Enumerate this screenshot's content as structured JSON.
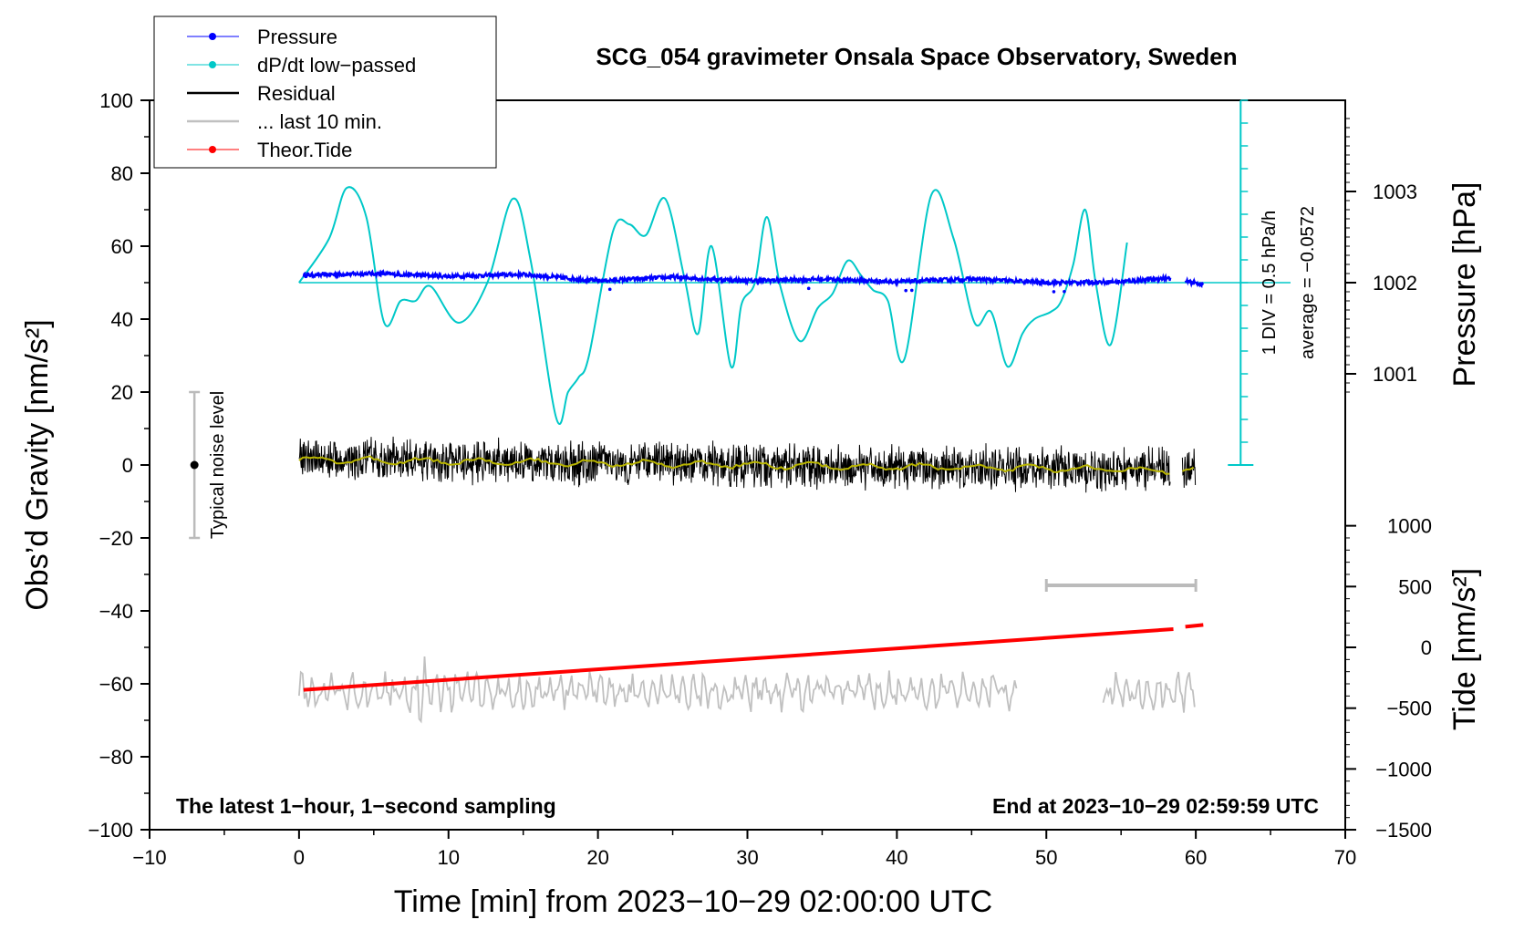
{
  "chart_data": {
    "type": "line",
    "title": "SCG_054 gravimeter Onsala Space Observatory, Sweden",
    "xlabel": "Time [min] from 2023−10−29 02:00:00 UTC",
    "ylabel": "Obs’d Gravity [nm/s²]",
    "y2label_pressure": "Pressure [hPa]",
    "y2label_tide": "Tide [nm/s²]",
    "xlim": [
      -10,
      70
    ],
    "ylim": [
      -100,
      100
    ],
    "x_ticks": [
      -10,
      0,
      10,
      20,
      30,
      40,
      50,
      60,
      70
    ],
    "x_tick_labels": [
      "−10",
      "0",
      "10",
      "20",
      "30",
      "40",
      "50",
      "60",
      "70"
    ],
    "y_ticks": [
      -100,
      -80,
      -60,
      -40,
      -20,
      0,
      20,
      40,
      60,
      80,
      100
    ],
    "y_tick_labels": [
      "−100",
      "−80",
      "−60",
      "−40",
      "−20",
      "0",
      "20",
      "40",
      "60",
      "80",
      "100"
    ],
    "pressure_axis": {
      "ticks": [
        1001,
        1002,
        1003
      ],
      "tick_labels": [
        "1001",
        "1002",
        "1003"
      ],
      "ref_value": 1002,
      "ref_gravity": 50,
      "gravity_per_hpa": 25
    },
    "tide_axis": {
      "ticks": [
        -1500,
        -1000,
        -500,
        0,
        500,
        1000
      ],
      "tick_labels": [
        "−1500",
        "−1000",
        "−500",
        "0",
        "500",
        "1000"
      ],
      "gravity_at_zero": -50,
      "gravity_per_500": 16.67
    },
    "legend": {
      "position": "top-left",
      "entries": [
        {
          "label": "Pressure",
          "color": "#0000ff",
          "marker": "dot"
        },
        {
          "label": "dP/dt low−passed",
          "color": "#00c8c8",
          "marker": "dot"
        },
        {
          "label": "Residual",
          "color": "#000000",
          "marker": "none"
        },
        {
          "label": "... last 10 min.",
          "color": "#c0c0c0",
          "marker": "none"
        },
        {
          "label": "Theor.Tide",
          "color": "#ff0000",
          "marker": "dot"
        }
      ]
    },
    "annotations": {
      "noise_label": "Typical noise level",
      "noise_center": 0,
      "noise_range": [
        -20,
        20
      ],
      "noise_x": -7,
      "scale_label": "1 DIV = 0.5 hPa/h",
      "average_label": "average = −0.0572",
      "bottom_left": "The latest 1−hour, 1−second sampling",
      "bottom_right": "End at 2023−10−29 02:59:59 UTC",
      "last10_bar": {
        "x": [
          50,
          60
        ],
        "y": -33
      }
    },
    "series": [
      {
        "name": "dP/dt low−passed",
        "color": "#00c8c8",
        "baseline": 50,
        "x": [
          0.0,
          2.0,
          3.2,
          4.5,
          5.7,
          6.8,
          7.8,
          8.8,
          10.7,
          12.6,
          14.3,
          15.5,
          17.2,
          18.0,
          18.7,
          19.4,
          21.0,
          22.1,
          23.2,
          24.5,
          25.8,
          26.7,
          27.6,
          28.9,
          29.6,
          30.5,
          31.3,
          32.2,
          33.5,
          34.7,
          35.7,
          36.7,
          37.6,
          38.4,
          39.4,
          40.5,
          42.3,
          43.8,
          45.2,
          46.3,
          47.4,
          48.4,
          49.2,
          50.3,
          51.0,
          51.8,
          52.6,
          53.3,
          54.3,
          55.4
        ],
        "values": [
          50,
          62,
          76,
          68,
          39,
          45,
          45,
          49,
          39,
          50,
          73,
          56,
          13,
          20,
          24,
          30,
          64,
          66,
          63,
          73,
          51,
          36,
          60,
          27,
          44,
          50,
          68,
          49,
          34,
          43,
          47,
          56,
          52,
          48,
          45,
          29,
          74,
          62,
          39,
          42,
          27,
          36,
          40,
          42,
          45,
          55,
          70,
          50,
          33,
          61
        ]
      },
      {
        "name": "Pressure",
        "color": "#0000ff",
        "x": [
          0,
          5,
          10,
          15,
          20,
          25,
          30,
          35,
          40,
          45,
          50,
          55,
          58,
          60.5
        ],
        "values": [
          1002.08,
          1002.1,
          1002.07,
          1002.09,
          1002.02,
          1002.06,
          1002.02,
          1002.04,
          1002.01,
          1002.04,
          1002.0,
          1002.01,
          1002.05,
          1001.98
        ]
      },
      {
        "name": "Residual",
        "color": "#000000",
        "x_range": [
          0,
          60
        ],
        "gap": [
          58.3,
          59.1
        ],
        "amplitude": 5,
        "trend": [
          1.5,
          -1.5
        ]
      },
      {
        "name": "... last 10 min.",
        "color": "#c0c0c0",
        "x_range": [
          0,
          60
        ],
        "gap": [
          48.0,
          53.8
        ],
        "center": -62,
        "amplitude": 5
      },
      {
        "name": "Theor.Tide",
        "color": "#ff0000",
        "x": [
          0.3,
          58.5,
          59.3,
          60.5
        ],
        "values": [
          -350,
          150,
          170,
          185
        ]
      }
    ]
  }
}
